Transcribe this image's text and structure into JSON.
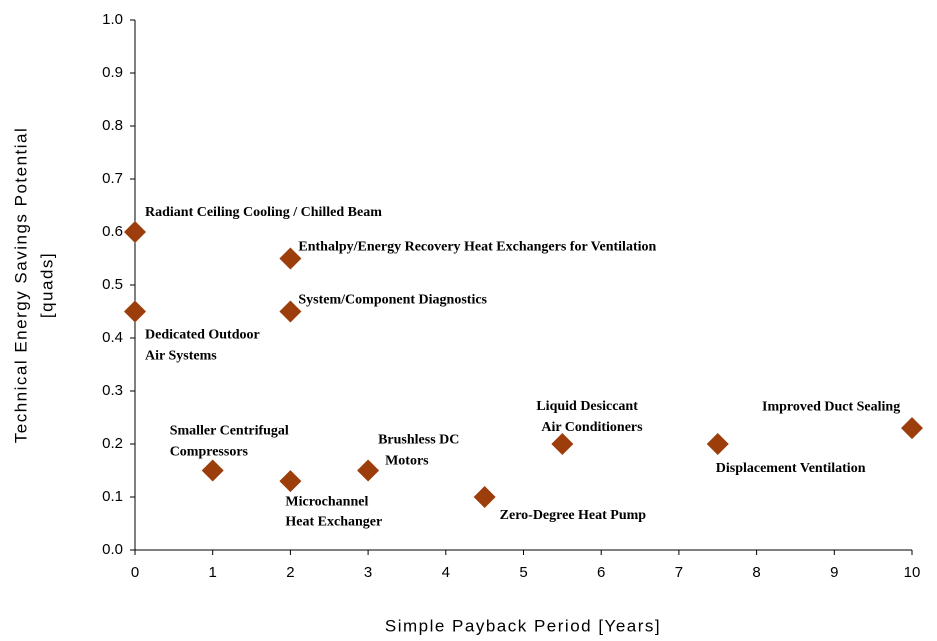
{
  "chart_data": {
    "type": "scatter",
    "x_label": "Simple Payback Period [Years]",
    "y_label": [
      "Technical Energy Savings Potential",
      "[quads]"
    ],
    "x": [
      0,
      0,
      2,
      2,
      1,
      2,
      3,
      4.5,
      5.5,
      7.5,
      10
    ],
    "values": [
      0.6,
      0.45,
      0.55,
      0.45,
      0.15,
      0.13,
      0.15,
      0.1,
      0.2,
      0.2,
      0.23
    ],
    "labels": [
      [
        "Radiant Ceiling Cooling / Chilled Beam"
      ],
      [
        "Dedicated Outdoor",
        "Air Systems"
      ],
      [
        "Enthalpy/Energy Recovery Heat Exchangers for Ventilation"
      ],
      [
        "System/Component Diagnostics"
      ],
      [
        "Smaller Centrifugal",
        "Compressors"
      ],
      [
        "Microchannel",
        "Heat Exchanger"
      ],
      [
        "Brushless DC",
        "Motors"
      ],
      [
        "Zero-Degree Heat Pump"
      ],
      [
        "Liquid Desiccant",
        "Air Conditioners"
      ],
      [
        "Displacement Ventilation"
      ],
      [
        "Improved Duct Sealing"
      ]
    ],
    "color": "#9c3d0c",
    "xlim": [
      0,
      10
    ],
    "ylim": [
      0,
      1
    ],
    "xticks": [
      0,
      1,
      2,
      3,
      4,
      5,
      6,
      7,
      8,
      9,
      10
    ],
    "yticks": [
      {
        "value": 0,
        "label": "0.0"
      },
      0.1,
      0.2,
      0.3,
      0.4,
      0.5,
      0.6,
      0.7,
      0.8,
      0.9,
      {
        "value": 1,
        "label": "1.0"
      }
    ],
    "grid": false
  }
}
